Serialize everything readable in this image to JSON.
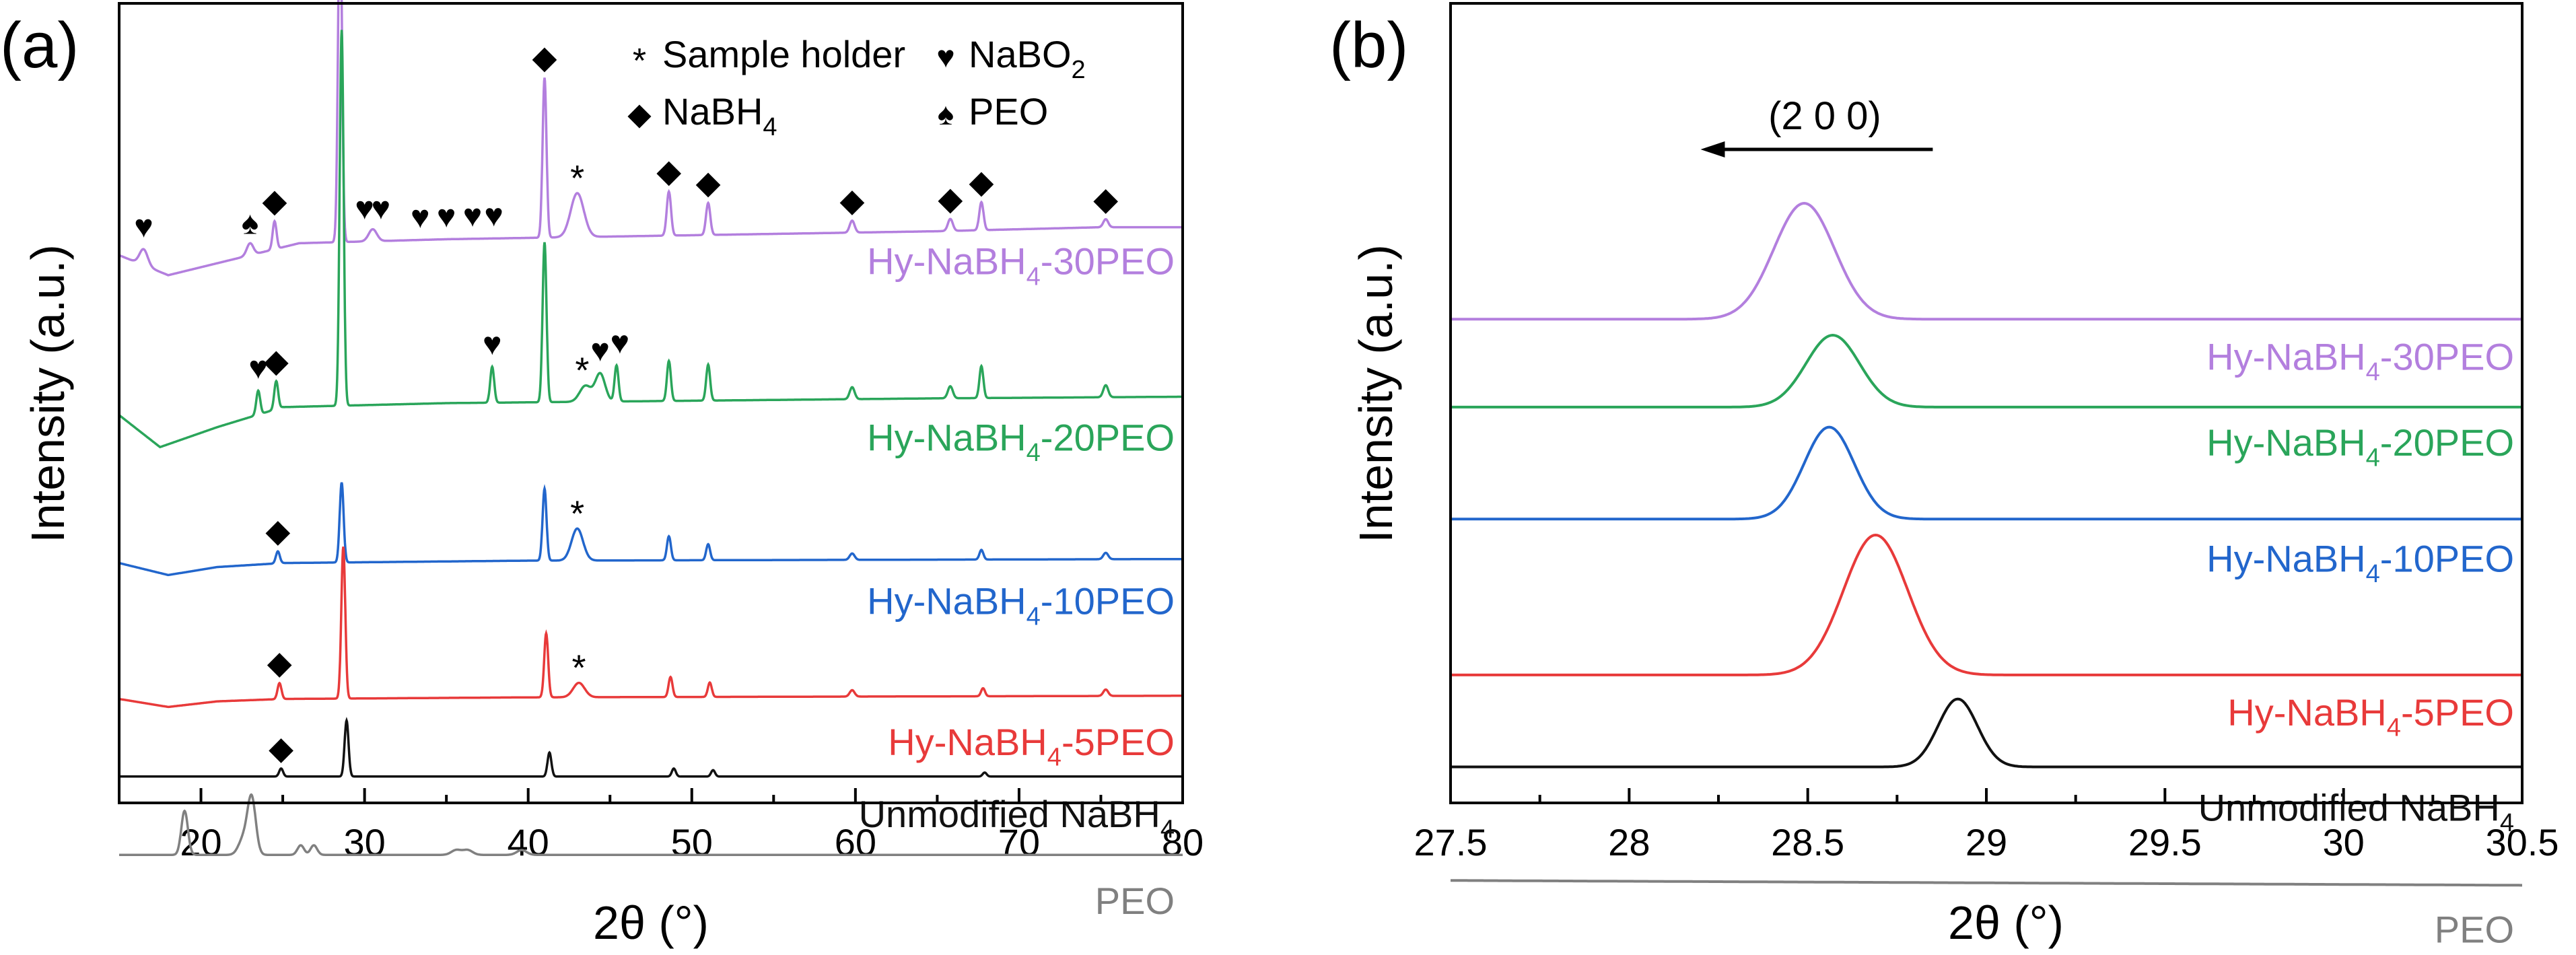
{
  "chart_data": [
    {
      "panel_label": "(a)",
      "type": "line",
      "xlabel": "2θ (°)",
      "ylabel": "Intensity (a.u.)",
      "xlim": [
        15,
        80
      ],
      "xticks": [
        20,
        30,
        40,
        50,
        60,
        70,
        80
      ],
      "y_ticks_shown": false,
      "grid": false,
      "legend": {
        "placement": "top-right",
        "entries": [
          {
            "symbol": "*",
            "label": "Sample holder"
          },
          {
            "symbol": "♥",
            "label": "NaBO",
            "sub": "2"
          },
          {
            "symbol": "◆",
            "label": "NaBH",
            "sub": "4"
          },
          {
            "symbol": "♠",
            "label": "PEO"
          }
        ]
      },
      "series": [
        {
          "name": "Hy-NaBH4-30PEO",
          "label": {
            "pre": "Hy-NaBH",
            "sub": "4",
            "post": "-30PEO"
          },
          "color": "#b37fde",
          "baseline": [
            [
              15,
              0.315
            ],
            [
              18,
              0.34
            ],
            [
              22,
              0.32
            ],
            [
              26,
              0.3
            ],
            [
              35,
              0.295
            ],
            [
              50,
              0.29
            ],
            [
              65,
              0.285
            ],
            [
              75,
              0.28
            ],
            [
              80,
              0.28
            ]
          ],
          "peaks": [
            {
              "x": 16.5,
              "h": 0.02,
              "w": 0.25
            },
            {
              "x": 23.0,
              "h": 0.015,
              "w": 0.2
            },
            {
              "x": 24.5,
              "h": 0.035,
              "w": 0.12
            },
            {
              "x": 28.5,
              "h": 0.43,
              "w": 0.12
            },
            {
              "x": 30.5,
              "h": 0.015,
              "w": 0.25
            },
            {
              "x": 41.0,
              "h": 0.2,
              "w": 0.12
            },
            {
              "x": 43.0,
              "h": 0.055,
              "w": 0.4
            },
            {
              "x": 48.6,
              "h": 0.055,
              "w": 0.13
            },
            {
              "x": 51.0,
              "h": 0.04,
              "w": 0.13
            },
            {
              "x": 59.8,
              "h": 0.015,
              "w": 0.15
            },
            {
              "x": 65.8,
              "h": 0.015,
              "w": 0.15
            },
            {
              "x": 67.7,
              "h": 0.035,
              "w": 0.13
            },
            {
              "x": 75.3,
              "h": 0.01,
              "w": 0.15
            }
          ]
        },
        {
          "name": "Hy-NaBH4-20PEO",
          "label": {
            "pre": "Hy-NaBH",
            "sub": "4",
            "post": "-20PEO"
          },
          "color": "#2aa55a",
          "baseline": [
            [
              15,
              0.515
            ],
            [
              17.5,
              0.555
            ],
            [
              21,
              0.53
            ],
            [
              25,
              0.505
            ],
            [
              35,
              0.5
            ],
            [
              50,
              0.497
            ],
            [
              65,
              0.494
            ],
            [
              80,
              0.492
            ]
          ],
          "peaks": [
            {
              "x": 23.5,
              "h": 0.03,
              "w": 0.12
            },
            {
              "x": 24.6,
              "h": 0.035,
              "w": 0.12
            },
            {
              "x": 28.6,
              "h": 0.47,
              "w": 0.12
            },
            {
              "x": 37.8,
              "h": 0.045,
              "w": 0.12
            },
            {
              "x": 41.0,
              "h": 0.2,
              "w": 0.12
            },
            {
              "x": 43.5,
              "h": 0.02,
              "w": 0.35
            },
            {
              "x": 44.4,
              "h": 0.035,
              "w": 0.3
            },
            {
              "x": 45.4,
              "h": 0.045,
              "w": 0.12
            },
            {
              "x": 48.6,
              "h": 0.05,
              "w": 0.12
            },
            {
              "x": 51.0,
              "h": 0.045,
              "w": 0.12
            },
            {
              "x": 59.8,
              "h": 0.015,
              "w": 0.15
            },
            {
              "x": 65.8,
              "h": 0.015,
              "w": 0.15
            },
            {
              "x": 67.7,
              "h": 0.04,
              "w": 0.12
            },
            {
              "x": 75.3,
              "h": 0.015,
              "w": 0.15
            }
          ]
        },
        {
          "name": "Hy-NaBH4-10PEO",
          "label": {
            "pre": "Hy-NaBH",
            "sub": "4",
            "post": "-10PEO"
          },
          "color": "#2266cc",
          "baseline": [
            [
              15,
              0.7
            ],
            [
              18,
              0.715
            ],
            [
              21,
              0.705
            ],
            [
              25,
              0.7
            ],
            [
              40,
              0.697
            ],
            [
              60,
              0.696
            ],
            [
              80,
              0.695
            ]
          ],
          "peaks": [
            {
              "x": 24.7,
              "h": 0.015,
              "w": 0.12
            },
            {
              "x": 28.6,
              "h": 0.1,
              "w": 0.12
            },
            {
              "x": 41.0,
              "h": 0.09,
              "w": 0.12
            },
            {
              "x": 43.0,
              "h": 0.04,
              "w": 0.35
            },
            {
              "x": 48.6,
              "h": 0.03,
              "w": 0.12
            },
            {
              "x": 51.0,
              "h": 0.02,
              "w": 0.12
            },
            {
              "x": 59.8,
              "h": 0.008,
              "w": 0.15
            },
            {
              "x": 67.7,
              "h": 0.012,
              "w": 0.12
            },
            {
              "x": 75.3,
              "h": 0.008,
              "w": 0.15
            }
          ]
        },
        {
          "name": "Hy-NaBH4-5PEO",
          "label": {
            "pre": "Hy-NaBH",
            "sub": "4",
            "post": "-5PEO"
          },
          "color": "#e83a3a",
          "baseline": [
            [
              15,
              0.87
            ],
            [
              18,
              0.88
            ],
            [
              21,
              0.873
            ],
            [
              25,
              0.87
            ],
            [
              40,
              0.868
            ],
            [
              60,
              0.867
            ],
            [
              80,
              0.866
            ]
          ],
          "peaks": [
            {
              "x": 24.8,
              "h": 0.02,
              "w": 0.12
            },
            {
              "x": 28.7,
              "h": 0.19,
              "w": 0.12
            },
            {
              "x": 41.1,
              "h": 0.08,
              "w": 0.12
            },
            {
              "x": 43.1,
              "h": 0.018,
              "w": 0.35
            },
            {
              "x": 48.7,
              "h": 0.025,
              "w": 0.12
            },
            {
              "x": 51.1,
              "h": 0.018,
              "w": 0.12
            },
            {
              "x": 59.8,
              "h": 0.008,
              "w": 0.15
            },
            {
              "x": 67.8,
              "h": 0.01,
              "w": 0.12
            },
            {
              "x": 75.3,
              "h": 0.008,
              "w": 0.15
            }
          ]
        },
        {
          "name": "Unmodified NaBH4",
          "label": {
            "pre": "Unmodified NaBH",
            "sub": "4",
            "post": ""
          },
          "color": "#111111",
          "baseline": [
            [
              15,
              0.967
            ],
            [
              80,
              0.967
            ]
          ],
          "peaks": [
            {
              "x": 24.9,
              "h": 0.01,
              "w": 0.12
            },
            {
              "x": 28.9,
              "h": 0.07,
              "w": 0.12
            },
            {
              "x": 41.3,
              "h": 0.03,
              "w": 0.12
            },
            {
              "x": 48.9,
              "h": 0.01,
              "w": 0.12
            },
            {
              "x": 51.3,
              "h": 0.008,
              "w": 0.12
            },
            {
              "x": 67.9,
              "h": 0.005,
              "w": 0.12
            }
          ]
        },
        {
          "name": "PEO",
          "label": {
            "pre": "PEO",
            "sub": "",
            "post": ""
          },
          "color": "#808080",
          "baseline": [
            [
              15,
              1.065
            ],
            [
              80,
              1.065
            ]
          ],
          "peaks": [
            {
              "x": 19.0,
              "h": 0.055,
              "w": 0.2
            },
            {
              "x": 23.1,
              "h": 0.07,
              "w": 0.25
            },
            {
              "x": 22.6,
              "h": 0.02,
              "w": 0.3
            },
            {
              "x": 26.1,
              "h": 0.012,
              "w": 0.2
            },
            {
              "x": 26.9,
              "h": 0.012,
              "w": 0.2
            },
            {
              "x": 35.6,
              "h": 0.006,
              "w": 0.3
            },
            {
              "x": 36.3,
              "h": 0.006,
              "w": 0.3
            },
            {
              "x": 39.6,
              "h": 0.006,
              "w": 0.3
            }
          ]
        }
      ],
      "annotations": [
        {
          "series": 0,
          "symbol": "♥",
          "x": 16.5
        },
        {
          "series": 0,
          "symbol": "♠",
          "x": 23.0
        },
        {
          "series": 0,
          "symbol": "◆",
          "x": 24.5
        },
        {
          "series": 0,
          "symbol": "◆",
          "x": 28.5
        },
        {
          "series": 0,
          "symbol": "♥",
          "x": 30.0
        },
        {
          "series": 0,
          "symbol": "♥",
          "x": 31.0
        },
        {
          "series": 0,
          "symbol": "♥",
          "x": 33.4
        },
        {
          "series": 0,
          "symbol": "♥",
          "x": 35.0
        },
        {
          "series": 0,
          "symbol": "♥",
          "x": 36.6
        },
        {
          "series": 0,
          "symbol": "♥",
          "x": 37.9
        },
        {
          "series": 0,
          "symbol": "◆",
          "x": 41.0
        },
        {
          "series": 0,
          "symbol": "*",
          "x": 43.0
        },
        {
          "series": 0,
          "symbol": "◆",
          "x": 48.6
        },
        {
          "series": 0,
          "symbol": "◆",
          "x": 51.0
        },
        {
          "series": 0,
          "symbol": "◆",
          "x": 59.8
        },
        {
          "series": 0,
          "symbol": "◆",
          "x": 65.8
        },
        {
          "series": 0,
          "symbol": "◆",
          "x": 67.7
        },
        {
          "series": 0,
          "symbol": "◆",
          "x": 75.3
        },
        {
          "series": 1,
          "symbol": "♥",
          "x": 23.5
        },
        {
          "series": 1,
          "symbol": "◆",
          "x": 24.6
        },
        {
          "series": 1,
          "symbol": "♥",
          "x": 37.8
        },
        {
          "series": 1,
          "symbol": "*",
          "x": 43.3
        },
        {
          "series": 1,
          "symbol": "♥",
          "x": 44.4
        },
        {
          "series": 1,
          "symbol": "♥",
          "x": 45.6
        },
        {
          "series": 2,
          "symbol": "◆",
          "x": 24.7
        },
        {
          "series": 2,
          "symbol": "*",
          "x": 43.0
        },
        {
          "series": 3,
          "symbol": "◆",
          "x": 24.8
        },
        {
          "series": 3,
          "symbol": "*",
          "x": 43.1
        },
        {
          "series": 4,
          "symbol": "◆",
          "x": 24.9
        }
      ]
    },
    {
      "panel_label": "(b)",
      "type": "line",
      "xlabel": "2θ (°)",
      "ylabel": "Intensity (a.u.)",
      "xlim": [
        27.5,
        30.5
      ],
      "xticks": [
        "27.5",
        "28",
        "28.5",
        "29",
        "29.5",
        "30",
        "30.5"
      ],
      "y_ticks_shown": false,
      "grid": false,
      "annotation": {
        "text": "(2 0 0)",
        "arrow": "left",
        "from_x": 28.85,
        "to_x": 28.2
      },
      "series": [
        {
          "name": "Hy-NaBH4-30PEO",
          "label": {
            "pre": "Hy-NaBH",
            "sub": "4",
            "post": "-30PEO"
          },
          "color": "#b37fde",
          "baseline": 0.395,
          "peak_x": 28.49,
          "peak_height": 0.145,
          "sigma": 0.085
        },
        {
          "name": "Hy-NaBH4-20PEO",
          "label": {
            "pre": "Hy-NaBH",
            "sub": "4",
            "post": "-20PEO"
          },
          "color": "#2aa55a",
          "baseline": 0.505,
          "peak_x": 28.57,
          "peak_height": 0.09,
          "sigma": 0.075
        },
        {
          "name": "Hy-NaBH4-10PEO",
          "label": {
            "pre": "Hy-NaBH",
            "sub": "4",
            "post": "-10PEO"
          },
          "color": "#2266cc",
          "baseline": 0.645,
          "peak_x": 28.56,
          "peak_height": 0.115,
          "sigma": 0.07
        },
        {
          "name": "Hy-NaBH4-5PEO",
          "label": {
            "pre": "Hy-NaBH",
            "sub": "4",
            "post": "-5PEO"
          },
          "color": "#e83a3a",
          "baseline": 0.84,
          "peak_x": 28.69,
          "peak_height": 0.175,
          "sigma": 0.09
        },
        {
          "name": "Unmodified NaBH4",
          "label": {
            "pre": "Unmodified NaBH",
            "sub": "4",
            "post": ""
          },
          "color": "#111111",
          "baseline": 0.955,
          "peak_x": 28.92,
          "peak_height": 0.085,
          "sigma": 0.055
        },
        {
          "name": "PEO",
          "label": {
            "pre": "PEO",
            "sub": "",
            "post": ""
          },
          "color": "#808080",
          "baseline": 1.097,
          "baseline_end": 1.103,
          "peak_x": null,
          "peak_height": 0,
          "sigma": 0
        }
      ]
    }
  ]
}
